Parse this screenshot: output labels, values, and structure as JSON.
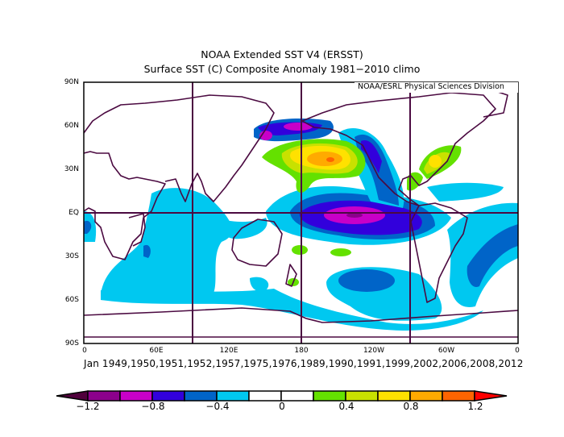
{
  "title": "NOAA Extended SST V4 (ERSST)",
  "subtitle": "Surface SST (C) Composite Anomaly 1981−2010 climo",
  "credit": "NOAA/ESRL Physical Sciences Division",
  "composite_label": "Jan 1949,1950,1951,1952,1957,1975,1976,1989,1990,1991,1999,2002,2006,2008,2012",
  "map": {
    "projection": "equirectangular",
    "lat_labels": [
      "90N",
      "60N",
      "30N",
      "EQ",
      "30S",
      "60S",
      "90S"
    ],
    "lon_labels": [
      "0",
      "60E",
      "120E",
      "180",
      "120W",
      "60W",
      "0"
    ],
    "grid_lines": [
      "90E",
      "180",
      "90W",
      "EQ"
    ],
    "coastline_color": "#4b0a41"
  },
  "colorbar": {
    "labels": [
      "−1.2",
      "−0.8",
      "−0.4",
      "0",
      "0.4",
      "0.8",
      "1.2"
    ],
    "levels": [
      -1.2,
      -1.0,
      -0.8,
      -0.6,
      -0.4,
      -0.2,
      0,
      0.2,
      0.4,
      0.6,
      0.8,
      1.0,
      1.2
    ],
    "colors": [
      "#50003c",
      "#8c008c",
      "#c800c8",
      "#3200dc",
      "#0064c8",
      "#00c8f0",
      "#ffffff",
      "#ffffff",
      "#64e100",
      "#c8e100",
      "#ffe100",
      "#ffaa00",
      "#ff6400",
      "#ff0000"
    ]
  }
}
